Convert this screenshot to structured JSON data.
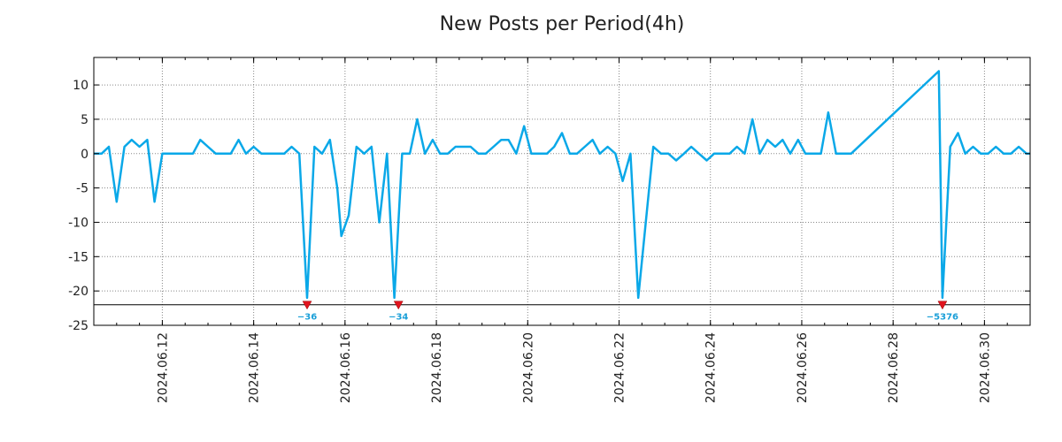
{
  "chart_data": {
    "type": "line",
    "title": "New Posts per Period(4h)",
    "xlabel": "",
    "ylabel": "",
    "ylim": [
      -25,
      14
    ],
    "yticks": [
      10,
      5,
      0,
      -5,
      -10,
      -15,
      -20,
      -25
    ],
    "xrange_days": [
      10.5,
      31.0
    ],
    "xticks": [
      {
        "day": 12,
        "label": "2024.06.12"
      },
      {
        "day": 14,
        "label": "2024.06.14"
      },
      {
        "day": 16,
        "label": "2024.06.16"
      },
      {
        "day": 18,
        "label": "2024.06.18"
      },
      {
        "day": 20,
        "label": "2024.06.20"
      },
      {
        "day": 22,
        "label": "2024.06.22"
      },
      {
        "day": 24,
        "label": "2024.06.24"
      },
      {
        "day": 26,
        "label": "2024.06.26"
      },
      {
        "day": 28,
        "label": "2024.06.28"
      },
      {
        "day": 30,
        "label": "2024.06.30"
      }
    ],
    "clip_level": -22,
    "grid": true,
    "series": [
      {
        "name": "New Posts",
        "color": "#0aa8e8",
        "points": [
          [
            10.5,
            0
          ],
          [
            10.67,
            0
          ],
          [
            10.83,
            1
          ],
          [
            11.0,
            -7
          ],
          [
            11.17,
            1
          ],
          [
            11.33,
            2
          ],
          [
            11.5,
            1
          ],
          [
            11.67,
            2
          ],
          [
            11.83,
            -7
          ],
          [
            12.0,
            0
          ],
          [
            12.17,
            0
          ],
          [
            12.33,
            0
          ],
          [
            12.5,
            0
          ],
          [
            12.67,
            0
          ],
          [
            12.83,
            2
          ],
          [
            13.0,
            1
          ],
          [
            13.17,
            0
          ],
          [
            13.33,
            0
          ],
          [
            13.5,
            0
          ],
          [
            13.67,
            2
          ],
          [
            13.83,
            0
          ],
          [
            14.0,
            1
          ],
          [
            14.17,
            0
          ],
          [
            14.33,
            0
          ],
          [
            14.5,
            0
          ],
          [
            14.67,
            0
          ],
          [
            14.83,
            1
          ],
          [
            15.0,
            0
          ],
          [
            15.17,
            -21
          ],
          [
            15.33,
            1
          ],
          [
            15.5,
            0
          ],
          [
            15.67,
            2
          ],
          [
            15.83,
            -5
          ],
          [
            15.92,
            -12
          ],
          [
            16.08,
            -9
          ],
          [
            16.25,
            1
          ],
          [
            16.42,
            0
          ],
          [
            16.58,
            1
          ],
          [
            16.75,
            -10
          ],
          [
            16.92,
            0
          ],
          [
            17.08,
            -21
          ],
          [
            17.25,
            0
          ],
          [
            17.42,
            0
          ],
          [
            17.58,
            5
          ],
          [
            17.75,
            0
          ],
          [
            17.92,
            2
          ],
          [
            18.08,
            0
          ],
          [
            18.25,
            0
          ],
          [
            18.42,
            1
          ],
          [
            18.58,
            1
          ],
          [
            18.75,
            1
          ],
          [
            18.92,
            0
          ],
          [
            19.08,
            0
          ],
          [
            19.25,
            1
          ],
          [
            19.42,
            2
          ],
          [
            19.58,
            2
          ],
          [
            19.75,
            0
          ],
          [
            19.92,
            4
          ],
          [
            20.08,
            0
          ],
          [
            20.25,
            0
          ],
          [
            20.42,
            0
          ],
          [
            20.58,
            1
          ],
          [
            20.75,
            3
          ],
          [
            20.92,
            0
          ],
          [
            21.08,
            0
          ],
          [
            21.25,
            1
          ],
          [
            21.42,
            2
          ],
          [
            21.58,
            0
          ],
          [
            21.75,
            1
          ],
          [
            21.92,
            0
          ],
          [
            22.08,
            -4
          ],
          [
            22.25,
            0
          ],
          [
            22.42,
            -21
          ],
          [
            22.75,
            1
          ],
          [
            22.92,
            0
          ],
          [
            23.08,
            0
          ],
          [
            23.25,
            -1
          ],
          [
            23.42,
            0
          ],
          [
            23.58,
            1
          ],
          [
            23.75,
            0
          ],
          [
            23.92,
            -1
          ],
          [
            24.08,
            0
          ],
          [
            24.25,
            0
          ],
          [
            24.42,
            0
          ],
          [
            24.58,
            1
          ],
          [
            24.75,
            0
          ],
          [
            24.92,
            5
          ],
          [
            25.08,
            0
          ],
          [
            25.25,
            2
          ],
          [
            25.42,
            1
          ],
          [
            25.58,
            2
          ],
          [
            25.75,
            0
          ],
          [
            25.92,
            2
          ],
          [
            26.08,
            0
          ],
          [
            26.25,
            0
          ],
          [
            26.42,
            0
          ],
          [
            26.58,
            6
          ],
          [
            26.75,
            0
          ],
          [
            26.92,
            0
          ],
          [
            27.08,
            0
          ],
          [
            29.0,
            12
          ],
          [
            29.08,
            -21
          ],
          [
            29.25,
            1
          ],
          [
            29.42,
            3
          ],
          [
            29.58,
            0
          ],
          [
            29.75,
            1
          ],
          [
            29.92,
            0
          ],
          [
            30.08,
            0
          ],
          [
            30.25,
            1
          ],
          [
            30.42,
            0
          ],
          [
            30.58,
            0
          ],
          [
            30.75,
            1
          ],
          [
            30.92,
            0
          ],
          [
            31.0,
            0
          ]
        ]
      }
    ],
    "clipped_minima": [
      {
        "day": 15.17,
        "label": "−36"
      },
      {
        "day": 17.17,
        "label": "−34"
      },
      {
        "day": 29.08,
        "label": "−5376"
      }
    ]
  }
}
